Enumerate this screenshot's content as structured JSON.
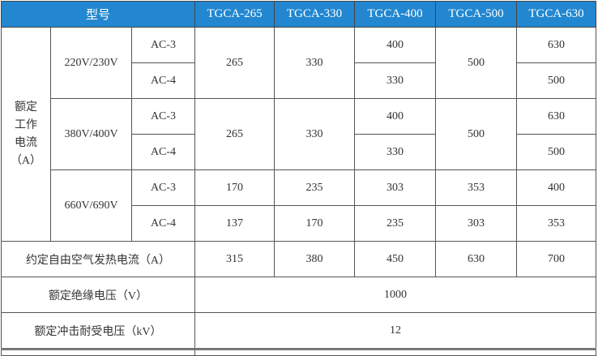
{
  "header": {
    "model_label": "型号",
    "models": [
      "TGCA-265",
      "TGCA-330",
      "TGCA-400",
      "TGCA-500",
      "TGCA-630"
    ]
  },
  "rated_current": {
    "label_lines": [
      "额定",
      "工作",
      "电流",
      "（A）"
    ],
    "groups": [
      {
        "voltage": "220V/230V",
        "ac3": {
          "label": "AC-3",
          "values": [
            "265",
            "330",
            "400",
            "500",
            "630"
          ]
        },
        "ac4": {
          "label": "AC-4",
          "values": [
            "330",
            "500"
          ]
        }
      },
      {
        "voltage": "380V/400V",
        "ac3": {
          "label": "AC-3",
          "values": [
            "265",
            "330",
            "400",
            "500",
            "630"
          ]
        },
        "ac4": {
          "label": "AC-4",
          "values": [
            "330",
            "500"
          ]
        }
      },
      {
        "voltage": "660V/690V",
        "ac3": {
          "label": "AC-3",
          "values": [
            "170",
            "235",
            "303",
            "353",
            "400"
          ]
        },
        "ac4": {
          "label": "AC-4",
          "values": [
            "137",
            "170",
            "235",
            "303",
            "353"
          ]
        }
      }
    ]
  },
  "thermal_current": {
    "label": "约定自由空气发热电流（A）",
    "values": [
      "315",
      "380",
      "450",
      "630",
      "700"
    ]
  },
  "insulation_voltage": {
    "label": "额定绝缘电压（V）",
    "value": "1000"
  },
  "impulse_voltage": {
    "label": "额定冲击耐受电压（kV）",
    "value": "12"
  },
  "colors": {
    "header_bg": "#2287d0",
    "header_text": "#ffffff"
  }
}
